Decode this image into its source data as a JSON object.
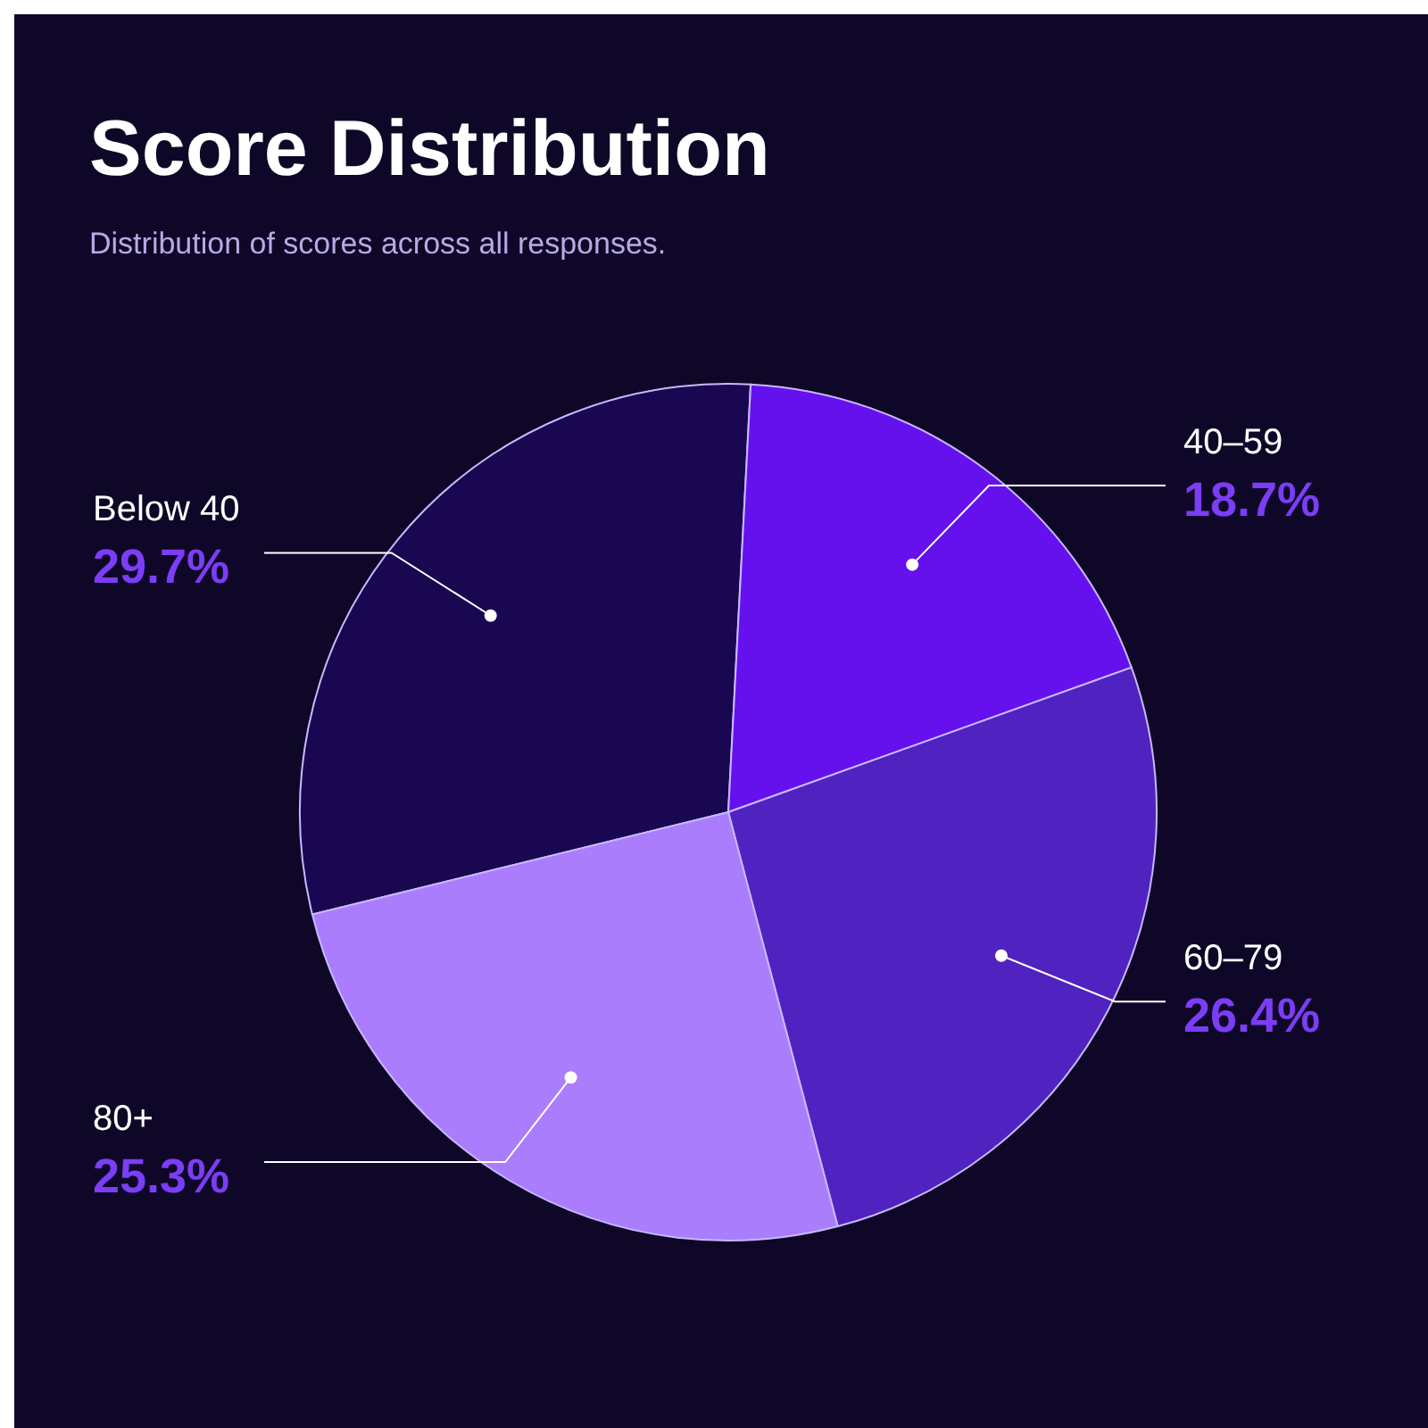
{
  "chart_data": {
    "type": "pie",
    "title": "Score Distribution",
    "subtitle": "Distribution of scores across all responses.",
    "categories": [
      "Below 40",
      "40–59",
      "60–79",
      "80+"
    ],
    "values": [
      29.7,
      18.7,
      26.4,
      25.3
    ],
    "colors": [
      "#1a0752",
      "#6511ee",
      "#5022bf",
      "#a97dfc"
    ],
    "value_labels": [
      "29.7%",
      "18.7%",
      "26.4%",
      "25.3%"
    ]
  }
}
